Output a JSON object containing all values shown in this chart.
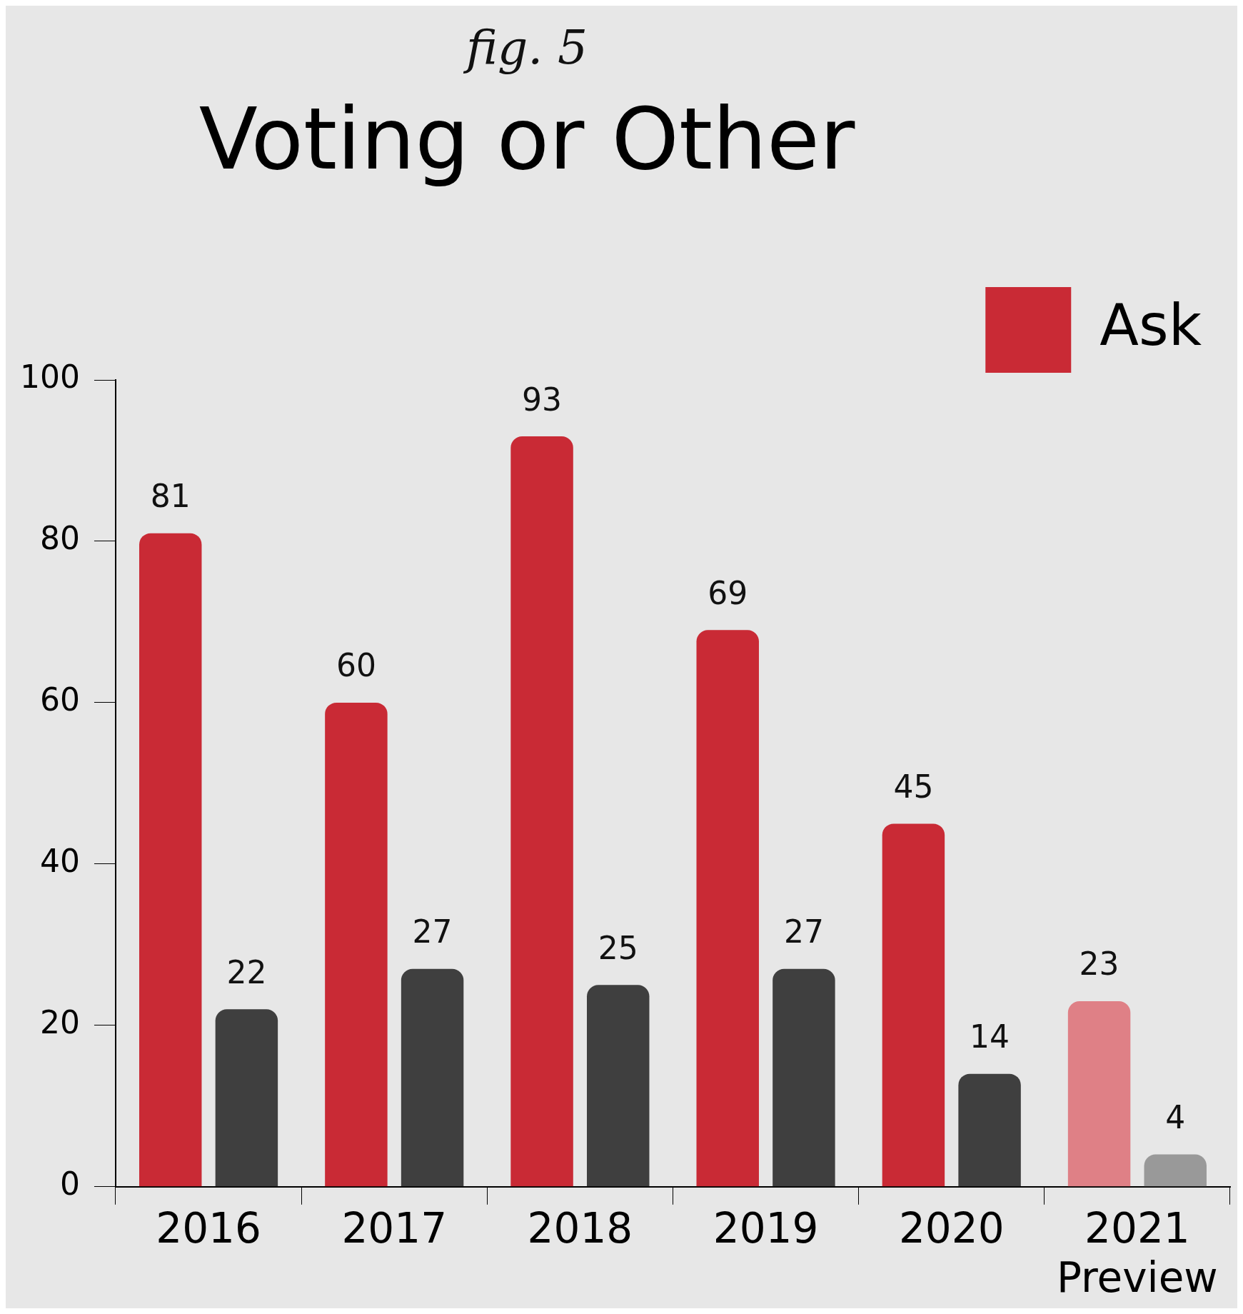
{
  "chart_data": {
    "type": "bar",
    "subtitle": "fig. 5",
    "title": "Voting or Other",
    "categories": [
      "2016",
      "2017",
      "2018",
      "2019",
      "2020",
      "2021 Preview"
    ],
    "series": [
      {
        "name": "Ask",
        "color": "#c92a35",
        "colors": [
          "#c92a35",
          "#c92a35",
          "#c92a35",
          "#c92a35",
          "#c92a35",
          "#df8086"
        ],
        "values": [
          81,
          60,
          93,
          69,
          45,
          23
        ]
      },
      {
        "color": "#3f3f3f",
        "colors": [
          "#3f3f3f",
          "#3f3f3f",
          "#3f3f3f",
          "#3f3f3f",
          "#3f3f3f",
          "#999999"
        ],
        "values": [
          22,
          27,
          25,
          27,
          14,
          4
        ]
      }
    ],
    "ylim": [
      0,
      100
    ],
    "yticks": [
      0,
      20,
      40,
      60,
      80,
      100
    ],
    "grid": false,
    "legend": "top right",
    "data_labels": true
  }
}
